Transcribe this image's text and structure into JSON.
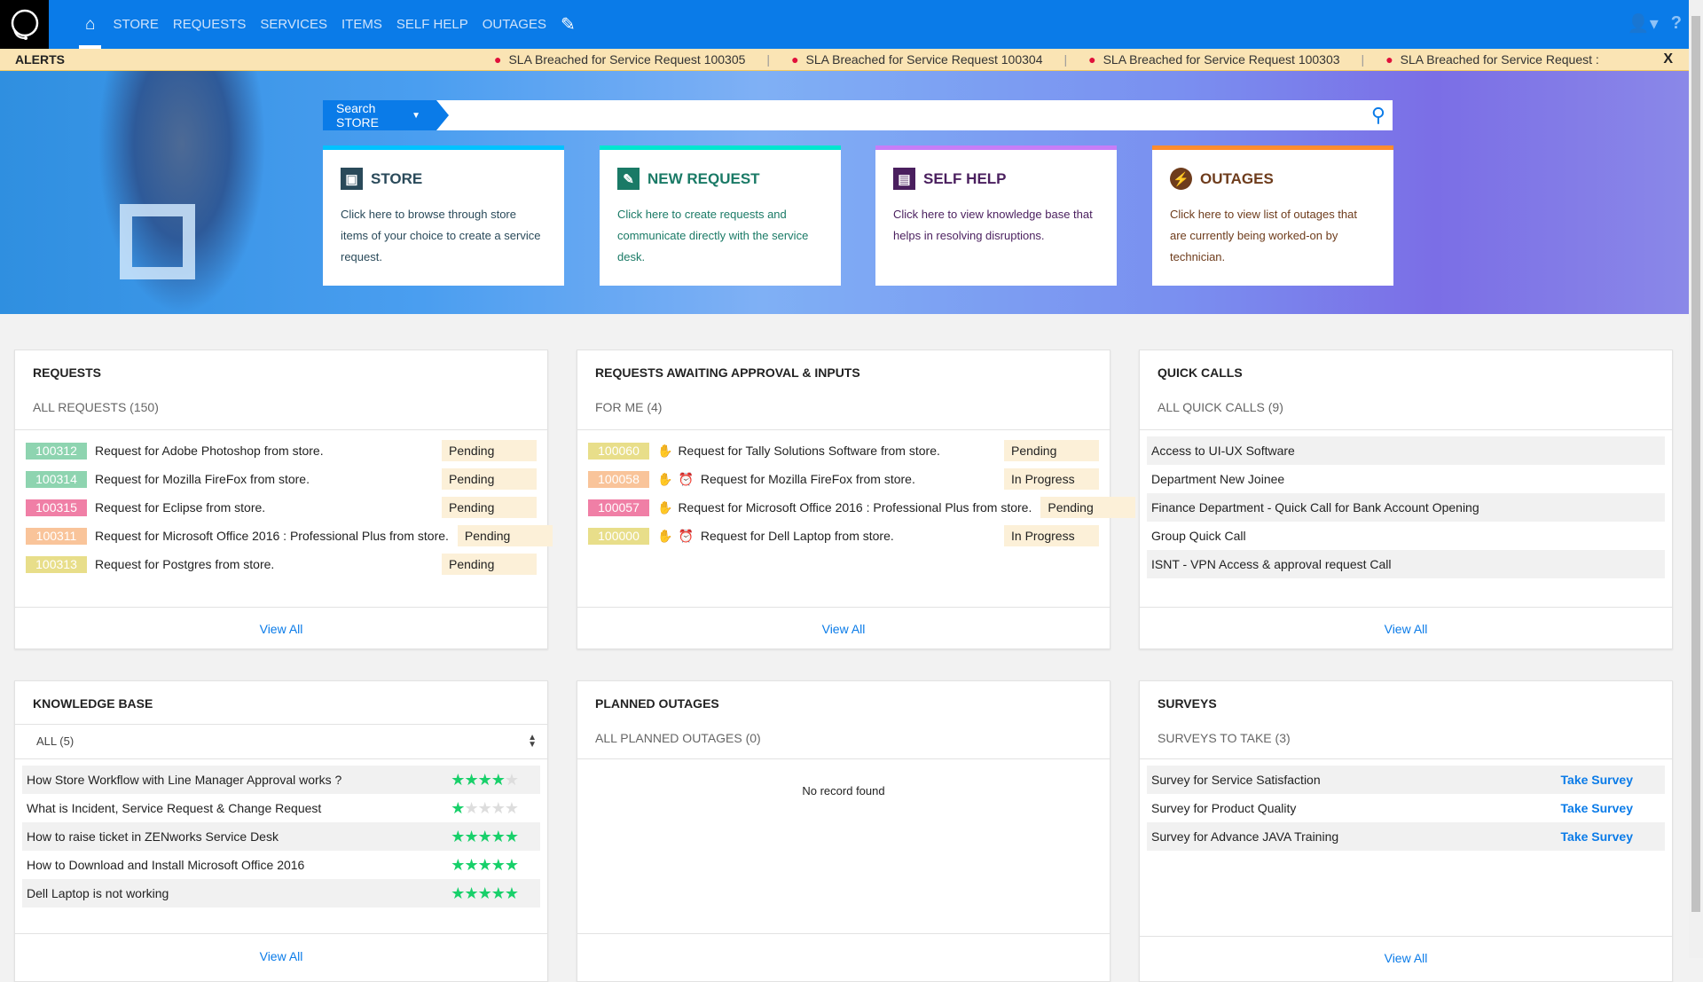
{
  "nav": {
    "items": [
      "STORE",
      "REQUESTS",
      "SERVICES",
      "ITEMS",
      "SELF HELP",
      "OUTAGES"
    ]
  },
  "alerts": {
    "label": "ALERTS",
    "items": [
      "SLA Breached for Service Request 100305",
      "SLA Breached for Service Request 100304",
      "SLA Breached for Service Request 100303",
      "SLA Breached for Service Request :"
    ],
    "close": "X"
  },
  "search": {
    "scope": "Search STORE",
    "placeholder": ""
  },
  "hero_cards": [
    {
      "title": "STORE",
      "desc": "Click here to browse through store items of your choice to create a service request.",
      "color": "#00c2ff",
      "text": "#2a4a5a"
    },
    {
      "title": "NEW REQUEST",
      "desc": "Click here to create requests and communicate directly with the service desk.",
      "color": "#00e6cf",
      "text": "#1a7a66"
    },
    {
      "title": "SELF HELP",
      "desc": "Click here to view knowledge base that helps in resolving disruptions.",
      "color": "#c77df7",
      "text": "#4a1f5e"
    },
    {
      "title": "OUTAGES",
      "desc": "Click here to view list of outages that are currently being worked-on by technician.",
      "color": "#ff8c2e",
      "text": "#6e3c1c"
    }
  ],
  "requests": {
    "title": "REQUESTS",
    "subtitle": "ALL REQUESTS (150)",
    "view_all": "View All",
    "rows": [
      {
        "id": "100312",
        "color": "#8ed4b0",
        "text": "Request for Adobe Photoshop from store.",
        "status": "Pending"
      },
      {
        "id": "100314",
        "color": "#8ed4b0",
        "text": "Request for Mozilla FireFox from store.",
        "status": "Pending"
      },
      {
        "id": "100315",
        "color": "#f07fa6",
        "text": "Request for Eclipse from store.",
        "status": "Pending"
      },
      {
        "id": "100311",
        "color": "#f9c49a",
        "text": "Request for Microsoft Office 2016 : Professional Plus from store.",
        "status": "Pending"
      },
      {
        "id": "100313",
        "color": "#e8de8a",
        "text": "Request for Postgres from store.",
        "status": "Pending"
      }
    ]
  },
  "approvals": {
    "title": "REQUESTS AWAITING APPROVAL & INPUTS",
    "subtitle": "FOR ME (4)",
    "view_all": "View All",
    "rows": [
      {
        "id": "100060",
        "color": "#e8de8a",
        "text": "Request for Tally Solutions Software from store.",
        "status": "Pending",
        "clock": false
      },
      {
        "id": "100058",
        "color": "#f9c49a",
        "text": "Request for Mozilla FireFox from store.",
        "status": "In Progress",
        "clock": true
      },
      {
        "id": "100057",
        "color": "#f07fa6",
        "text": "Request for Microsoft Office 2016 : Professional Plus from store.",
        "status": "Pending",
        "clock": false
      },
      {
        "id": "100000",
        "color": "#e8de8a",
        "text": "Request for Dell Laptop from store.",
        "status": "In Progress",
        "clock": true
      }
    ]
  },
  "quick_calls": {
    "title": "QUICK CALLS",
    "subtitle": "ALL QUICK CALLS (9)",
    "view_all": "View All",
    "rows": [
      "Access to UI-UX Software",
      "Department New Joinee",
      "Finance Department - Quick Call for Bank Account Opening",
      "Group Quick Call",
      "ISNT - VPN Access & approval request Call"
    ]
  },
  "knowledge": {
    "title": "KNOWLEDGE BASE",
    "filter": "ALL (5)",
    "view_all": "View All",
    "rows": [
      {
        "text": "How Store Workflow with Line Manager Approval works ?",
        "rating": 4
      },
      {
        "text": "What is Incident, Service Request & Change Request",
        "rating": 1
      },
      {
        "text": "How to raise ticket in ZENworks Service Desk",
        "rating": 5
      },
      {
        "text": "How to Download and Install Microsoft Office 2016",
        "rating": 5
      },
      {
        "text": "Dell Laptop is not working",
        "rating": 5
      }
    ]
  },
  "outages": {
    "title": "PLANNED OUTAGES",
    "subtitle": "ALL PLANNED OUTAGES (0)",
    "empty": "No record found"
  },
  "surveys": {
    "title": "SURVEYS",
    "subtitle": "SURVEYS TO TAKE (3)",
    "action": "Take Survey",
    "view_all": "View All",
    "rows": [
      "Survey for Service Satisfaction",
      "Survey for Product Quality",
      "Survey for Advance JAVA Training"
    ]
  }
}
